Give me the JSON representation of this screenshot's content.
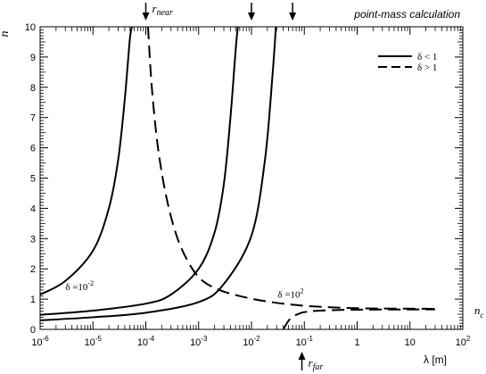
{
  "chart_data": {
    "type": "line",
    "title": "point-mass calculation",
    "xlabel": "λ [m]",
    "ylabel": "n",
    "xscale": "log",
    "xlim": [
      1e-06,
      100
    ],
    "ylim": [
      0,
      10
    ],
    "x_ticks": [
      {
        "value": 1e-06,
        "base": "10",
        "exp": "-6"
      },
      {
        "value": 1e-05,
        "base": "10",
        "exp": "-5"
      },
      {
        "value": 0.0001,
        "base": "10",
        "exp": "-4"
      },
      {
        "value": 0.001,
        "base": "10",
        "exp": "-3"
      },
      {
        "value": 0.01,
        "base": "10",
        "exp": "-2"
      },
      {
        "value": 0.1,
        "base": "10",
        "exp": "-1"
      },
      {
        "value": 1,
        "base": "1",
        "exp": ""
      },
      {
        "value": 10,
        "base": "10",
        "exp": ""
      },
      {
        "value": 100,
        "base": "10",
        "exp": "2"
      }
    ],
    "y_ticks": [
      0,
      1,
      2,
      3,
      4,
      5,
      6,
      7,
      8,
      9,
      10
    ],
    "legend": {
      "placement": "top-right",
      "entries": [
        {
          "label": "δ < 1",
          "style": "solid"
        },
        {
          "label": "δ > 1",
          "style": "dashed"
        }
      ]
    },
    "series": [
      {
        "style": "solid",
        "x": [
          1e-06,
          3e-06,
          1e-05,
          2e-05,
          3e-05,
          4e-05,
          5e-05,
          5.5e-05
        ],
        "y": [
          1.15,
          1.6,
          2.6,
          4.0,
          5.6,
          7.6,
          9.6,
          10
        ]
      },
      {
        "style": "solid",
        "x": [
          1e-06,
          1e-05,
          0.0001,
          0.0003,
          0.001,
          0.002,
          0.003,
          0.004,
          0.005,
          0.0055
        ],
        "y": [
          0.48,
          0.62,
          0.85,
          1.15,
          2.0,
          3.2,
          4.8,
          7.0,
          9.2,
          10
        ]
      },
      {
        "style": "solid",
        "x": [
          1e-06,
          1e-05,
          0.0001,
          0.001,
          0.003,
          0.01,
          0.018,
          0.025,
          0.029
        ],
        "y": [
          0.3,
          0.4,
          0.55,
          0.9,
          1.5,
          3.1,
          5.6,
          8.4,
          10
        ]
      },
      {
        "style": "dashed",
        "x": [
          0.00011,
          0.00013,
          0.00017,
          0.00025,
          0.0004,
          0.0007,
          0.0012,
          0.0025,
          0.006,
          0.02,
          0.1,
          1,
          30
        ],
        "y": [
          10,
          8.0,
          6.0,
          4.3,
          3.0,
          2.1,
          1.6,
          1.3,
          1.1,
          0.92,
          0.78,
          0.7,
          0.68
        ]
      },
      {
        "style": "dashed",
        "x": [
          0.04,
          0.045,
          0.05,
          0.06,
          0.08,
          0.1,
          0.2,
          1,
          30
        ],
        "y": [
          0,
          0.15,
          0.28,
          0.42,
          0.52,
          0.57,
          0.62,
          0.65,
          0.66
        ]
      }
    ],
    "annotations": [
      {
        "id": "delta-small",
        "text": "δ =10",
        "sup": "-2",
        "x": 3e-06,
        "y": 1.3
      },
      {
        "id": "delta-large",
        "text": "δ =10",
        "sup": "2",
        "x": 0.05,
        "y": 1.05
      },
      {
        "id": "nc",
        "text": "n",
        "sub": "c",
        "x": 150,
        "y": 0.68
      }
    ],
    "arrows": [
      {
        "id": "r-near",
        "x": 0.0001,
        "direction": "down",
        "label": "r",
        "sub": "near"
      },
      {
        "id": "arrow-2",
        "x": 0.01,
        "direction": "down",
        "label": "",
        "sub": ""
      },
      {
        "id": "arrow-3",
        "x": 0.06,
        "direction": "down",
        "label": "",
        "sub": ""
      },
      {
        "id": "r-far",
        "x": 0.09,
        "direction": "up",
        "label": "r",
        "sub": "far"
      }
    ]
  }
}
